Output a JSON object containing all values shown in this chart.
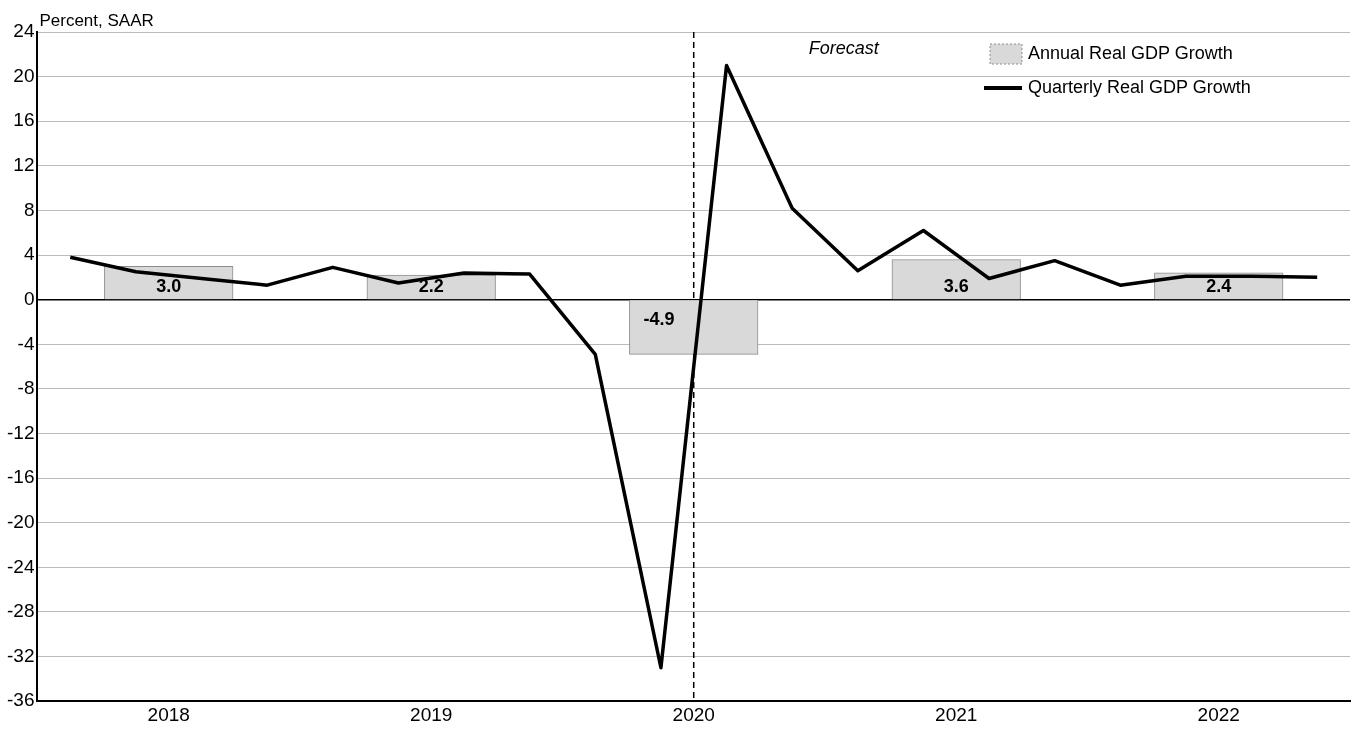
{
  "chart_data": {
    "type": "line",
    "ylabel": "Percent, SAAR",
    "xlim": [
      2018,
      2023
    ],
    "xticks": [
      {
        "value": 2018.5,
        "label": "2018"
      },
      {
        "value": 2019.5,
        "label": "2019"
      },
      {
        "value": 2020.5,
        "label": "2020"
      },
      {
        "value": 2021.5,
        "label": "2021"
      },
      {
        "value": 2022.5,
        "label": "2022"
      }
    ],
    "ylim": [
      -36,
      24
    ],
    "yticks": [
      -36,
      -32,
      -28,
      -24,
      -20,
      -16,
      -12,
      -8,
      -4,
      0,
      4,
      8,
      12,
      16,
      20,
      24
    ],
    "grid": "y",
    "legend": "top right",
    "annotations": [
      "Forecast"
    ],
    "ref_lines": [
      {
        "axis": "x",
        "value": 2020.5,
        "line_style": "dashed",
        "color": "#000000"
      }
    ],
    "series": [
      {
        "name": "Annual Real GDP Growth",
        "type": "bar",
        "color": "#d9d9d9",
        "x": [
          2018.5,
          2019.5,
          2020.5,
          2021.5,
          2022.5
        ],
        "values": [
          3.0,
          2.2,
          -4.9,
          3.6,
          2.4
        ],
        "value_labels": [
          "3.0",
          "2.2",
          "-4.9",
          "3.6",
          "2.4"
        ]
      },
      {
        "name": "Quarterly Real GDP Growth",
        "color": "#000000",
        "marker": "none",
        "line_style": "solid",
        "x": [
          2018.125,
          2018.375,
          2018.625,
          2018.875,
          2019.125,
          2019.375,
          2019.625,
          2019.875,
          2020.125,
          2020.375,
          2020.625,
          2020.875,
          2021.125,
          2021.375,
          2021.625,
          2021.875,
          2022.125,
          2022.375,
          2022.625,
          2022.875
        ],
        "values": [
          3.8,
          2.5,
          1.9,
          1.3,
          2.9,
          1.5,
          2.4,
          2.3,
          -4.9,
          -33,
          21,
          8.2,
          2.6,
          6.2,
          1.9,
          3.5,
          1.3,
          2.1,
          2.1,
          2.0
        ]
      }
    ]
  }
}
